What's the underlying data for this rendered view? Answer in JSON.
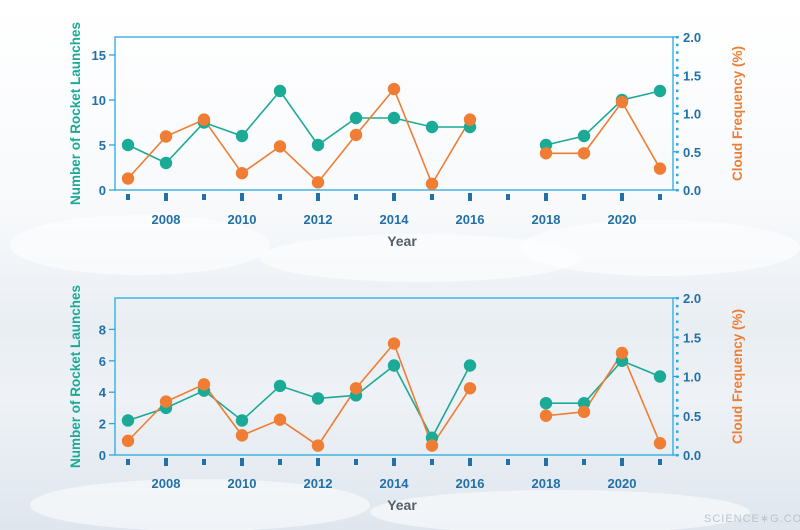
{
  "colors": {
    "teal": "#1aaa96",
    "orange": "#ef7d33",
    "axis": "#2aa9e0",
    "label_blue": "#2270a8"
  },
  "watermark": "SCIENCE∗G.COM",
  "chart_data": [
    {
      "type": "line",
      "title": "",
      "xlabel": "Year",
      "ylabel": "Number of Rocket Launches",
      "y2label": "Cloud Frequency (%)",
      "x_ticks": [
        "2008",
        "2010",
        "2012",
        "2014",
        "2016",
        "2018",
        "2020"
      ],
      "xlim": [
        2007,
        2021
      ],
      "ylim": [
        0,
        17
      ],
      "y_ticks": [
        "0",
        "5",
        "10",
        "15"
      ],
      "y2lim": [
        0,
        2.0
      ],
      "y2_ticks": [
        "0.0",
        "0.5",
        "1.0",
        "1.5",
        "2.0"
      ],
      "x": [
        2007,
        2008,
        2009,
        2010,
        2011,
        2012,
        2013,
        2014,
        2015,
        2016,
        2017,
        2018,
        2019,
        2020,
        2021
      ],
      "series": [
        {
          "name": "Rocket Launches",
          "axis": "left",
          "color": "#1aaa96",
          "values": [
            5,
            3,
            7.5,
            6,
            11,
            5,
            8,
            8,
            7,
            7,
            null,
            5,
            6,
            10,
            11
          ]
        },
        {
          "name": "Cloud Frequency",
          "axis": "right",
          "color": "#ef7d33",
          "values": [
            0.15,
            0.7,
            0.92,
            0.22,
            0.57,
            0.1,
            0.72,
            1.32,
            0.08,
            0.92,
            null,
            0.48,
            0.48,
            1.15,
            0.28
          ]
        }
      ]
    },
    {
      "type": "line",
      "title": "",
      "xlabel": "Year",
      "ylabel": "Number of Rocket Launches",
      "y2label": "Cloud Frequency (%)",
      "x_ticks": [
        "2008",
        "2010",
        "2012",
        "2014",
        "2016",
        "2018",
        "2020"
      ],
      "xlim": [
        2007,
        2021
      ],
      "ylim": [
        0,
        10
      ],
      "y_ticks": [
        "0",
        "2",
        "4",
        "6",
        "8"
      ],
      "y2lim": [
        0,
        2.0
      ],
      "y2_ticks": [
        "0.0",
        "0.5",
        "1.0",
        "1.5",
        "2.0"
      ],
      "x": [
        2007,
        2008,
        2009,
        2010,
        2011,
        2012,
        2013,
        2014,
        2015,
        2016,
        2017,
        2018,
        2019,
        2020,
        2021
      ],
      "series": [
        {
          "name": "Rocket Launches",
          "axis": "left",
          "color": "#1aaa96",
          "values": [
            2.2,
            3,
            4.1,
            2.2,
            4.4,
            3.6,
            3.8,
            5.7,
            1.1,
            5.7,
            null,
            3.3,
            3.3,
            6,
            5
          ]
        },
        {
          "name": "Cloud Frequency",
          "axis": "right",
          "color": "#ef7d33",
          "values": [
            0.18,
            0.68,
            0.9,
            0.25,
            0.45,
            0.12,
            0.85,
            1.42,
            0.12,
            0.85,
            null,
            0.5,
            0.55,
            1.3,
            0.15
          ]
        }
      ]
    }
  ]
}
